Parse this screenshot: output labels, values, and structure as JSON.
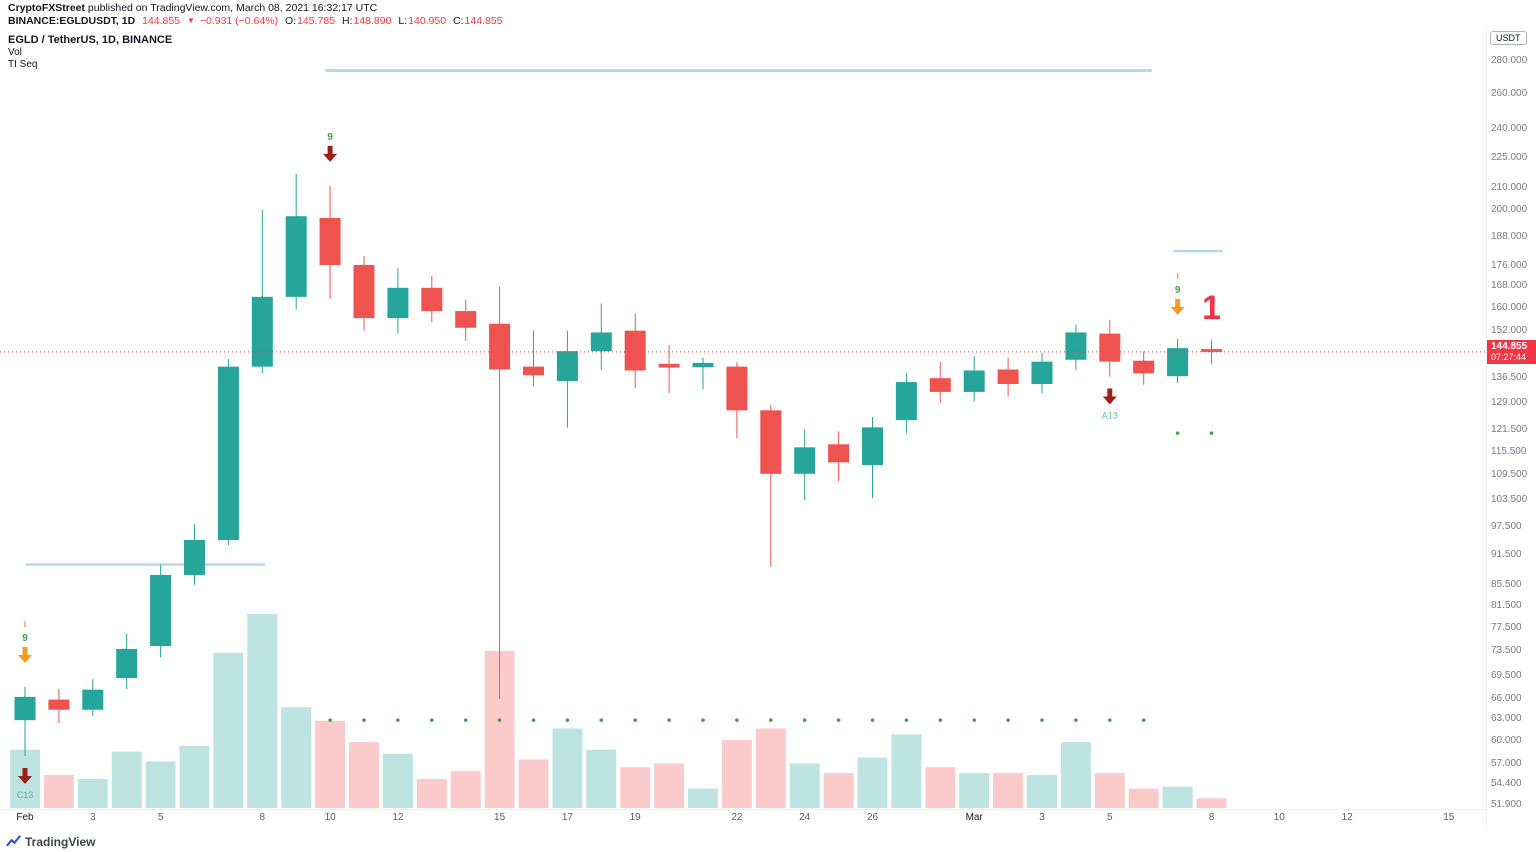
{
  "publish_bar": {
    "author": "CryptoFXStreet",
    "rest": " published on TradingView.com, March 08, 2021 16:32:17 UTC"
  },
  "quote_bar": {
    "symbol": "BINANCE:EGLDUSDT, 1D",
    "price": "144.855",
    "arrow": "▼",
    "change": "−0.931 (−0.64%)",
    "o_label": "O:",
    "o": "145.785",
    "h_label": "H:",
    "h": "148.890",
    "l_label": "L:",
    "l": "140.950",
    "c_label": "C:",
    "c": "144.855"
  },
  "legend": {
    "title": "EGLD / TetherUS, 1D, BINANCE",
    "indicator1": "Vol",
    "indicator2": "TI Seq"
  },
  "price_axis": {
    "unit": "USDT",
    "last_price": "144.855",
    "countdown": "07:27:44"
  },
  "footer": {
    "logo_text": "TradingView"
  },
  "colors": {
    "up": "#26a69a",
    "down": "#ef5350",
    "vol_up": "rgba(38,166,154,0.30)",
    "vol_down": "rgba(239,83,80,0.30)",
    "level": "#b5d9e8",
    "orange": "#f59b22",
    "darkred": "#9c1f1a",
    "green": "#43a047",
    "dot": "#43a047",
    "teal_label": "#5cbcae",
    "accent": "#f23645"
  },
  "chart_data": {
    "type": "candlestick",
    "title": "EGLD / TetherUS, 1D, BINANCE",
    "scale": "log",
    "y_range": [
      51.9,
      280
    ],
    "last_price": 144.855,
    "y_ticks": [
      280,
      260,
      240,
      225,
      210,
      200,
      188,
      176,
      168,
      160,
      152,
      136.5,
      129,
      121.5,
      115.5,
      109.5,
      103.5,
      97.5,
      91.5,
      85.5,
      81.5,
      77.5,
      73.5,
      69.5,
      66,
      63,
      60,
      57,
      54.4,
      51.9
    ],
    "x_ticks": [
      {
        "label": "Feb",
        "day": 0,
        "major": true
      },
      {
        "label": "3",
        "day": 2
      },
      {
        "label": "5",
        "day": 4
      },
      {
        "label": "8",
        "day": 7
      },
      {
        "label": "10",
        "day": 9
      },
      {
        "label": "12",
        "day": 11
      },
      {
        "label": "15",
        "day": 14
      },
      {
        "label": "17",
        "day": 16
      },
      {
        "label": "19",
        "day": 18
      },
      {
        "label": "22",
        "day": 21
      },
      {
        "label": "24",
        "day": 23
      },
      {
        "label": "26",
        "day": 25
      },
      {
        "label": "Mar",
        "day": 28,
        "major": true
      },
      {
        "label": "3",
        "day": 30
      },
      {
        "label": "5",
        "day": 32
      },
      {
        "label": "8",
        "day": 35
      },
      {
        "label": "10",
        "day": 37
      },
      {
        "label": "12",
        "day": 39
      },
      {
        "label": "15",
        "day": 42
      }
    ],
    "candles": [
      {
        "d": "Feb 1",
        "o": 62.9,
        "h": 67.8,
        "l": 58.0,
        "c": 66.3,
        "v": 30
      },
      {
        "d": "Feb 2",
        "o": 65.9,
        "h": 67.5,
        "l": 62.5,
        "c": 64.4,
        "v": 17
      },
      {
        "d": "Feb 3",
        "o": 64.4,
        "h": 69.0,
        "l": 63.5,
        "c": 67.4,
        "v": 15
      },
      {
        "d": "Feb 4",
        "o": 69.2,
        "h": 76.5,
        "l": 67.5,
        "c": 73.9,
        "v": 29
      },
      {
        "d": "Feb 5",
        "o": 74.4,
        "h": 89.5,
        "l": 72.5,
        "c": 87.4,
        "v": 24
      },
      {
        "d": "Feb 6",
        "o": 87.4,
        "h": 98.0,
        "l": 85.5,
        "c": 94.6,
        "v": 32
      },
      {
        "d": "Feb 7",
        "o": 94.6,
        "h": 142.5,
        "l": 93.5,
        "c": 140.1,
        "v": 80
      },
      {
        "d": "Feb 8",
        "o": 140.1,
        "h": 199.8,
        "l": 138.0,
        "c": 164.1,
        "v": 100
      },
      {
        "d": "Feb 9",
        "o": 164.1,
        "h": 216.8,
        "l": 159.5,
        "c": 197.0,
        "v": 52
      },
      {
        "d": "Feb 10",
        "o": 196.2,
        "h": 211.0,
        "l": 163.4,
        "c": 176.4,
        "v": 45
      },
      {
        "d": "Feb 11",
        "o": 176.4,
        "h": 180.0,
        "l": 152.0,
        "c": 156.4,
        "v": 34
      },
      {
        "d": "Feb 12",
        "o": 156.4,
        "h": 175.0,
        "l": 151.0,
        "c": 167.5,
        "v": 28
      },
      {
        "d": "Feb 13",
        "o": 167.5,
        "h": 172.0,
        "l": 155.0,
        "c": 158.9,
        "v": 15
      },
      {
        "d": "Feb 14",
        "o": 158.9,
        "h": 163.0,
        "l": 148.5,
        "c": 153.0,
        "v": 19
      },
      {
        "d": "Feb 15",
        "o": 154.4,
        "h": 168.0,
        "l": 66.0,
        "c": 139.2,
        "v": 81
      },
      {
        "d": "Feb 16",
        "o": 140.1,
        "h": 152.0,
        "l": 134.0,
        "c": 137.4,
        "v": 25
      },
      {
        "d": "Feb 17",
        "o": 135.6,
        "h": 152.0,
        "l": 122.0,
        "c": 145.1,
        "v": 41
      },
      {
        "d": "Feb 18",
        "o": 145.1,
        "h": 161.6,
        "l": 139.0,
        "c": 151.4,
        "v": 30
      },
      {
        "d": "Feb 19",
        "o": 152.0,
        "h": 158.0,
        "l": 133.5,
        "c": 138.9,
        "v": 21
      },
      {
        "d": "Feb 20",
        "o": 141.0,
        "h": 147.1,
        "l": 132.0,
        "c": 139.8,
        "v": 23
      },
      {
        "d": "Feb 21",
        "o": 139.9,
        "h": 143.0,
        "l": 133.0,
        "c": 141.3,
        "v": 10
      },
      {
        "d": "Feb 22",
        "o": 140.1,
        "h": 141.5,
        "l": 119.2,
        "c": 126.9,
        "v": 35
      },
      {
        "d": "Feb 23",
        "o": 126.9,
        "h": 128.5,
        "l": 89.0,
        "c": 109.9,
        "v": 41
      },
      {
        "d": "Feb 24",
        "o": 109.9,
        "h": 121.5,
        "l": 103.5,
        "c": 116.7,
        "v": 23
      },
      {
        "d": "Feb 25",
        "o": 117.5,
        "h": 121.0,
        "l": 108.0,
        "c": 112.8,
        "v": 18
      },
      {
        "d": "Feb 26",
        "o": 112.1,
        "h": 125.0,
        "l": 104.0,
        "c": 122.1,
        "v": 26
      },
      {
        "d": "Feb 27",
        "o": 124.1,
        "h": 138.0,
        "l": 120.4,
        "c": 135.3,
        "v": 38
      },
      {
        "d": "Feb 28",
        "o": 136.5,
        "h": 141.7,
        "l": 129.0,
        "c": 132.3,
        "v": 21
      },
      {
        "d": "Mar 1",
        "o": 132.3,
        "h": 143.5,
        "l": 129.5,
        "c": 138.9,
        "v": 18
      },
      {
        "d": "Mar 2",
        "o": 139.2,
        "h": 143.0,
        "l": 131.0,
        "c": 134.7,
        "v": 18
      },
      {
        "d": "Mar 3",
        "o": 134.7,
        "h": 144.5,
        "l": 132.0,
        "c": 141.7,
        "v": 17
      },
      {
        "d": "Mar 4",
        "o": 142.3,
        "h": 154.1,
        "l": 139.0,
        "c": 151.4,
        "v": 34
      },
      {
        "d": "Mar 5",
        "o": 151.0,
        "h": 155.8,
        "l": 137.0,
        "c": 141.7,
        "v": 18
      },
      {
        "d": "Mar 6",
        "o": 142.0,
        "h": 145.0,
        "l": 134.5,
        "c": 138.0,
        "v": 10
      },
      {
        "d": "Mar 7",
        "o": 137.1,
        "h": 149.2,
        "l": 135.0,
        "c": 146.1,
        "v": 11
      },
      {
        "d": "Mar 8",
        "o": 145.785,
        "h": 148.89,
        "l": 140.95,
        "c": 144.855,
        "v": 5
      }
    ],
    "levels": [
      {
        "price": 274,
        "d1": 8.9,
        "d2": 33.2,
        "w": 3
      },
      {
        "price": 89.5,
        "d1": 0.05,
        "d2": 7.05,
        "w": 2.5
      },
      {
        "price": 182,
        "d1": 33.9,
        "d2": 35.3,
        "w": 2.5
      }
    ],
    "markers": {
      "signals": [
        {
          "day": 0,
          "side": "above",
          "arrow": "orange",
          "num": "9",
          "itag": "i"
        },
        {
          "day": 0,
          "side": "below",
          "arrow": "darkred",
          "cd": "C13"
        },
        {
          "day": 9,
          "side": "above",
          "arrow": "darkred",
          "num": "9"
        },
        {
          "day": 32,
          "side": "below",
          "arrow": "darkred",
          "cd": "A13"
        },
        {
          "day": 34,
          "side": "above",
          "arrow": "orange",
          "num": "9",
          "itag": "i"
        }
      ],
      "dot_rows": [
        {
          "d1": 9,
          "d2": 33,
          "price": 62.9
        },
        {
          "d1": 34,
          "d2": 35,
          "price": 120.5
        }
      ],
      "big_label": {
        "day": 35,
        "price": 156,
        "text": "1"
      }
    }
  }
}
